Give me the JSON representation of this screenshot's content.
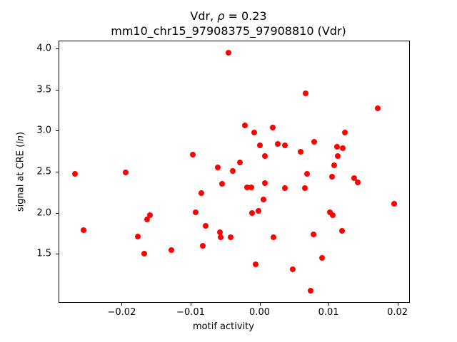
{
  "figure": {
    "title": {
      "part1": "Vdr, ",
      "rho": "ρ",
      "part2": " = 0.23"
    },
    "subtitle": "mm10_chr15_97908375_97908810 (Vdr)",
    "xlabel": "motif activity",
    "ylabel": {
      "part1": "signal at CRE (",
      "italic": "ln",
      "part2": ")"
    }
  },
  "chart_data": {
    "type": "scatter",
    "title": "Vdr, ρ = 0.23",
    "subtitle": "mm10_chr15_97908375_97908810 (Vdr)",
    "xlabel": "motif activity",
    "ylabel": "signal at CRE (ln)",
    "marker_color": "#ff0000",
    "marker_size_px": 8,
    "grid": false,
    "legend": null,
    "xlim": [
      -0.02916,
      0.0218
    ],
    "ylim": [
      0.905,
      4.095
    ],
    "xticks": [
      -0.02,
      -0.01,
      0.0,
      0.01,
      0.02
    ],
    "xtick_labels": [
      "−0.02",
      "−0.01",
      "0.00",
      "0.01",
      "0.02"
    ],
    "yticks": [
      1.5,
      2.0,
      2.5,
      3.0,
      3.5,
      4.0
    ],
    "ytick_labels": [
      "1.5",
      "2.0",
      "2.5",
      "3.0",
      "3.5",
      "4.0"
    ],
    "points": [
      [
        -0.0045,
        3.95
      ],
      [
        0.0067,
        3.45
      ],
      [
        0.0171,
        3.27
      ],
      [
        -0.0021,
        3.06
      ],
      [
        0.0019,
        3.04
      ],
      [
        -0.0008,
        2.98
      ],
      [
        0.0124,
        2.98
      ],
      [
        0.0079,
        2.86
      ],
      [
        0.0026,
        2.84
      ],
      [
        0.0,
        2.82
      ],
      [
        0.0037,
        2.82
      ],
      [
        0.0112,
        2.8
      ],
      [
        0.0121,
        2.79
      ],
      [
        0.006,
        2.74
      ],
      [
        -0.0097,
        2.71
      ],
      [
        0.0008,
        2.69
      ],
      [
        0.0113,
        2.69
      ],
      [
        -0.0029,
        2.61
      ],
      [
        0.0108,
        2.58
      ],
      [
        -0.0061,
        2.55
      ],
      [
        -0.0039,
        2.51
      ],
      [
        -0.0194,
        2.49
      ],
      [
        0.0069,
        2.47
      ],
      [
        -0.0268,
        2.47
      ],
      [
        0.0105,
        2.44
      ],
      [
        0.0137,
        2.42
      ],
      [
        0.0142,
        2.37
      ],
      [
        0.0008,
        2.36
      ],
      [
        -0.0054,
        2.35
      ],
      [
        -0.0018,
        2.31
      ],
      [
        -0.0012,
        2.31
      ],
      [
        0.0066,
        2.3
      ],
      [
        0.0037,
        2.3
      ],
      [
        -0.0084,
        2.24
      ],
      [
        0.0006,
        2.16
      ],
      [
        0.0195,
        2.11
      ],
      [
        -0.0093,
        2.01
      ],
      [
        -0.0011,
        2.0
      ],
      [
        -0.0002,
        2.02
      ],
      [
        0.0102,
        2.01
      ],
      [
        0.0106,
        1.97
      ],
      [
        -0.0159,
        1.97
      ],
      [
        -0.0163,
        1.92
      ],
      [
        -0.0078,
        1.84
      ],
      [
        -0.0255,
        1.79
      ],
      [
        0.012,
        1.78
      ],
      [
        -0.0057,
        1.76
      ],
      [
        -0.0056,
        1.7
      ],
      [
        0.0078,
        1.74
      ],
      [
        -0.0177,
        1.71
      ],
      [
        -0.0042,
        1.7
      ],
      [
        0.002,
        1.7
      ],
      [
        -0.0082,
        1.6
      ],
      [
        -0.0128,
        1.55
      ],
      [
        -0.0167,
        1.5
      ],
      [
        0.0091,
        1.45
      ],
      [
        -0.0006,
        1.37
      ],
      [
        0.0048,
        1.31
      ],
      [
        0.0074,
        1.05
      ]
    ]
  }
}
